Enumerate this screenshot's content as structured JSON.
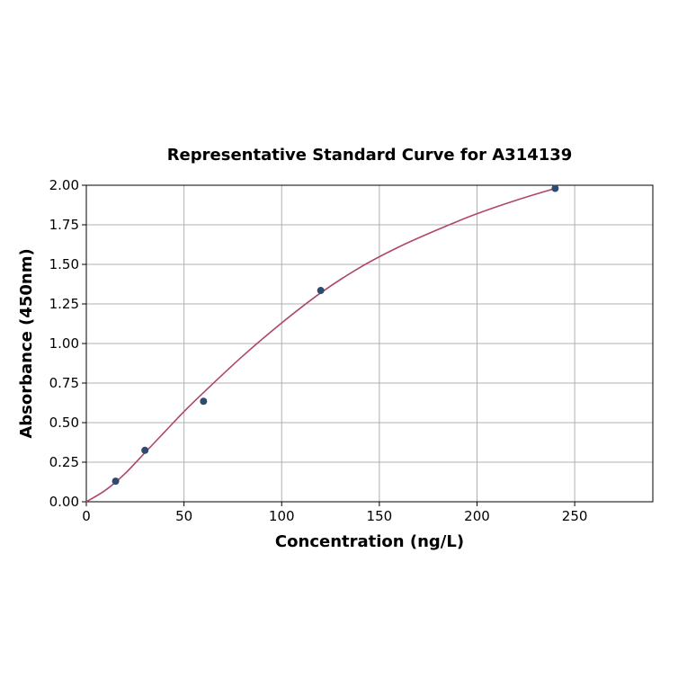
{
  "chart_data": {
    "type": "scatter",
    "title": "Representative Standard Curve for A314139",
    "xlabel": "Concentration (ng/L)",
    "ylabel": "Absorbance (450nm)",
    "xlim": [
      0,
      290
    ],
    "ylim": [
      0,
      2.0
    ],
    "xticks": [
      0,
      50,
      100,
      150,
      200,
      250
    ],
    "xtick_labels": [
      "0",
      "50",
      "100",
      "150",
      "200",
      "250"
    ],
    "yticks": [
      0,
      0.25,
      0.5,
      0.75,
      1.0,
      1.25,
      1.5,
      1.75,
      2.0
    ],
    "ytick_labels": [
      "0.00",
      "0.25",
      "0.50",
      "0.75",
      "1.00",
      "1.25",
      "1.50",
      "1.75",
      "2.00"
    ],
    "grid": true,
    "points": {
      "x": [
        15,
        30,
        60,
        120,
        240
      ],
      "y": [
        0.13,
        0.325,
        0.635,
        1.335,
        1.98
      ]
    },
    "fit_curve": {
      "x": [
        0,
        10,
        20,
        30,
        40,
        50,
        60,
        80,
        100,
        120,
        140,
        160,
        180,
        200,
        220,
        240
      ],
      "y": [
        0.0,
        0.075,
        0.18,
        0.31,
        0.44,
        0.57,
        0.69,
        0.92,
        1.13,
        1.32,
        1.48,
        1.61,
        1.72,
        1.82,
        1.905,
        1.98
      ]
    },
    "colors": {
      "points": "#2e4a6e",
      "curve": "#b0456e"
    }
  }
}
